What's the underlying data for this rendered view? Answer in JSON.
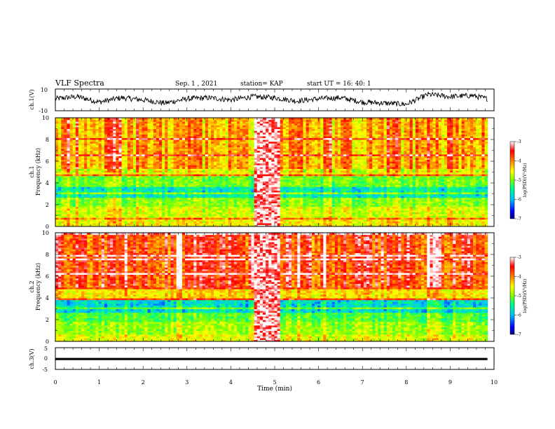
{
  "header": {
    "title": "VLF Spectra",
    "date": "Sep. 1 , 2021",
    "station": "station= KAP",
    "start_ut": "start  UT =   16: 40: 1"
  },
  "chart_data": [
    {
      "id": "ch1_waveform",
      "type": "line",
      "ylabel": "ch.1(V)",
      "ylim": [
        -10,
        10
      ],
      "yticks": [
        "10",
        "-10"
      ],
      "xlim": [
        0,
        10
      ],
      "x": [
        0.0,
        0.5,
        1.0,
        1.5,
        2.0,
        2.5,
        3.0,
        3.5,
        4.0,
        4.5,
        5.0,
        5.5,
        6.0,
        6.5,
        7.0,
        7.5,
        8.0,
        8.5,
        9.0,
        9.5,
        9.85
      ],
      "y": [
        1,
        3,
        -2,
        2,
        0,
        -3,
        1,
        2,
        0,
        3,
        2,
        -1,
        1,
        2,
        -2,
        -3,
        -4,
        5,
        3,
        4,
        1
      ]
    },
    {
      "id": "ch1_spectrogram",
      "type": "heatmap",
      "ylabel": "ch.1\nFrequency  (kHz)",
      "ylim": [
        0,
        10
      ],
      "yticks": [
        "0",
        "2",
        "4",
        "6",
        "8",
        "10"
      ],
      "xlim": [
        0,
        10
      ],
      "data_end_min": 9.85,
      "interference_band_min": [
        4.55,
        5.15
      ],
      "band_log_psd": [
        {
          "f": [
            0,
            0.6
          ],
          "v": -4.5
        },
        {
          "f": [
            0.6,
            1.8
          ],
          "v": -4.7
        },
        {
          "f": [
            1.8,
            2.6
          ],
          "v": -5.0
        },
        {
          "f": [
            2.6,
            3.6
          ],
          "v": -5.7
        },
        {
          "f": [
            3.6,
            4.6
          ],
          "v": -5.1
        },
        {
          "f": [
            4.6,
            5.4
          ],
          "v": -4.6
        },
        {
          "f": [
            5.4,
            10
          ],
          "v": -4.2
        }
      ],
      "colorbar": {
        "label": "log(PSD)(V²/Hz)",
        "ticks": [
          "-3",
          "-4",
          "-5",
          "-6",
          "-7"
        ],
        "range": [
          -7,
          -3
        ]
      }
    },
    {
      "id": "ch2_spectrogram",
      "type": "heatmap",
      "ylabel": "ch.2\nFrequency  (kHz)",
      "ylim": [
        0,
        10
      ],
      "yticks": [
        "0",
        "2",
        "4",
        "6",
        "8",
        "10"
      ],
      "xlim": [
        0,
        10
      ],
      "data_end_min": 9.85,
      "interference_band_min": [
        4.55,
        5.15
      ],
      "band_log_psd": [
        {
          "f": [
            0,
            0.6
          ],
          "v": -4.6
        },
        {
          "f": [
            0.6,
            1.8
          ],
          "v": -4.9
        },
        {
          "f": [
            1.8,
            2.6
          ],
          "v": -5.2
        },
        {
          "f": [
            2.6,
            3.8
          ],
          "v": -5.8
        },
        {
          "f": [
            3.8,
            4.8
          ],
          "v": -4.4
        },
        {
          "f": [
            4.8,
            10
          ],
          "v": -3.7
        }
      ],
      "colorbar": {
        "label": "log(PSD)(V²/Hz)",
        "ticks": [
          "-3",
          "-4",
          "-5",
          "-6",
          "-7"
        ],
        "range": [
          -7,
          -3
        ]
      }
    },
    {
      "id": "ch3_waveform",
      "type": "line",
      "ylabel": "ch.3(V)",
      "ylim": [
        -5,
        5
      ],
      "yticks": [
        "5",
        "0",
        "-5"
      ],
      "xlim": [
        0,
        10
      ],
      "xlabel": "Time  (min)",
      "xticks": [
        "0",
        "1",
        "2",
        "3",
        "4",
        "5",
        "6",
        "7",
        "8",
        "9",
        "10"
      ],
      "band": [
        -0.7,
        0.3
      ],
      "data_end_min": 9.85
    }
  ],
  "colors": {
    "colormap": [
      "#000080",
      "#0000ff",
      "#00c0ff",
      "#00ff80",
      "#80ff00",
      "#ffff00",
      "#ff8000",
      "#ff0000",
      "#ffffff"
    ],
    "axis": "#000000",
    "trace": "#000000"
  }
}
